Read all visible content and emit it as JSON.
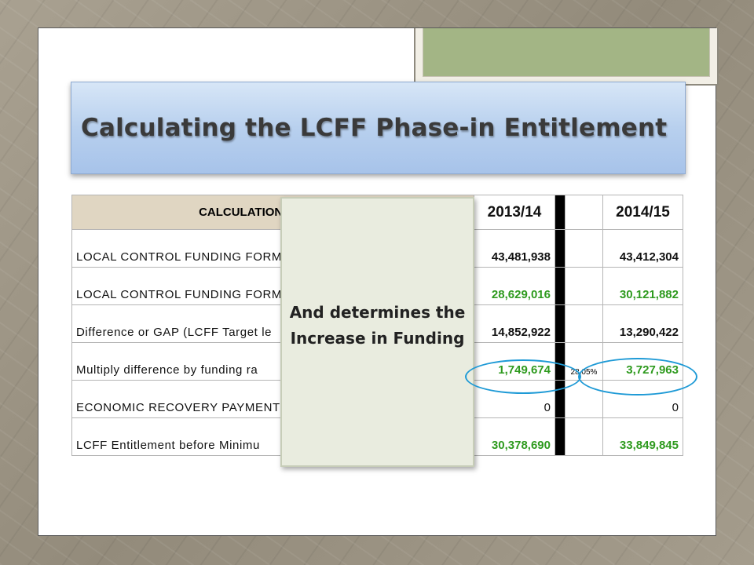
{
  "slide": {
    "title": "Calculating the LCFF Phase-in Entitlement"
  },
  "table": {
    "header_label": "CALCULATION OF LCFF P",
    "year1": "2013/14",
    "year2": "2014/15",
    "rows": [
      {
        "label": "LOCAL CONTROL FUNDING FORM",
        "v1": "43,481,938",
        "v2": "43,412,304",
        "color": "black"
      },
      {
        "label": "LOCAL CONTROL FUNDING FORM",
        "v1": "28,629,016",
        "v2": "30,121,882",
        "color": "green"
      },
      {
        "label": "Difference or GAP (LCFF Target le",
        "v1": "14,852,922",
        "v2": "13,290,422",
        "color": "black"
      },
      {
        "label": "Multiply difference by funding ra",
        "v1": "1,749,674",
        "pct": "28.05%",
        "v2": "3,727,963",
        "color": "green"
      },
      {
        "label": "ECONOMIC RECOVERY PAYMENT",
        "v1": "0",
        "v2": "0",
        "color": "black"
      },
      {
        "label": "LCFF Entitlement before Minimu",
        "v1": "30,378,690",
        "v2": "33,849,845",
        "color": "green"
      }
    ]
  },
  "callout": {
    "line1": "And determines the",
    "line2": "Increase in Funding"
  },
  "colors": {
    "green_values": "#2e9a1e",
    "header_fill": "#e0d6c2",
    "title_fill": "#b8d0ee",
    "highlight_ellipse": "#1e9ad6",
    "frame_green": "#a3b585"
  }
}
